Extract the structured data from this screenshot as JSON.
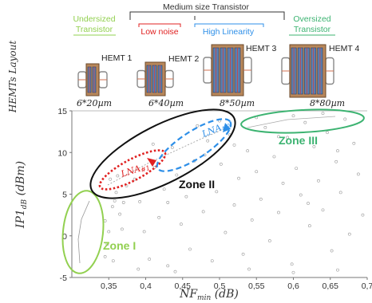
{
  "header": {
    "medium": "Medium size Transistor",
    "undersized": [
      "Undersized",
      "Transistor"
    ],
    "low_noise": "Low noise",
    "high_linearity": "High Linearity",
    "oversized": [
      "Oversized",
      "Transistor"
    ],
    "layout_label": "HEMTs Layout",
    "colors": {
      "medium": "#333333",
      "undersized": "#92d050",
      "low_noise": "#e02020",
      "high_linearity": "#2e8fe8",
      "oversized": "#3cb371"
    }
  },
  "transistors": [
    {
      "name": "HEMT 1",
      "size": "6*20µm",
      "fingers": 2
    },
    {
      "name": "HEMT 2",
      "size": "6*40µm",
      "fingers": 3
    },
    {
      "name": "HEMT 3",
      "size": "8*50µm",
      "fingers": 4
    },
    {
      "name": "HEMT 4",
      "size": "8*80µm",
      "fingers": 5
    }
  ],
  "zones": [
    {
      "name": "Zone I",
      "color": "#92d050"
    },
    {
      "name": "Zone II",
      "color": "#111111"
    },
    {
      "name": "Zone III",
      "color": "#3cb371"
    }
  ],
  "lna_labels": [
    {
      "name": "LNA",
      "sub": "#1",
      "color": "#e02020"
    },
    {
      "name": "LNA",
      "sub": "#2",
      "color": "#2e8fe8"
    }
  ],
  "chart_data": {
    "type": "scatter",
    "xlabel": "NF",
    "xlabel_sub": "min",
    "xlabel_unit": "(dB)",
    "ylabel": "IP1",
    "ylabel_sub": "dB",
    "ylabel_unit": "(dBm)",
    "xlim": [
      0.3,
      0.7
    ],
    "ylim": [
      -5,
      15
    ],
    "xticks": [
      0.35,
      0.4,
      0.45,
      0.5,
      0.55,
      0.6,
      0.65,
      0.7
    ],
    "xtick_labels": [
      "0,35",
      "0,4",
      "0,45",
      "0,5",
      "0,55",
      "0,6",
      "0,65",
      "0,7"
    ],
    "yticks": [
      -5,
      0,
      5,
      10,
      15
    ],
    "ytick_labels": [
      "-5",
      "0",
      "5",
      "10",
      "15"
    ],
    "grid": false,
    "series": [
      {
        "points": [
          [
            0.345,
            -2.5
          ],
          [
            0.35,
            0.5
          ],
          [
            0.355,
            3.5
          ],
          [
            0.36,
            5.2
          ],
          [
            0.345,
            1.8
          ],
          [
            0.352,
            6.8
          ],
          [
            0.358,
            4.2
          ],
          [
            0.365,
            2.6
          ],
          [
            0.348,
            -1.0
          ],
          [
            0.362,
            7.2
          ],
          [
            0.37,
            4.0
          ],
          [
            0.356,
            -3.0
          ],
          [
            0.368,
            0.8
          ],
          [
            0.374,
            6.0
          ],
          [
            0.385,
            6.8
          ],
          [
            0.392,
            4.1
          ],
          [
            0.398,
            0.5
          ],
          [
            0.405,
            -2.8
          ],
          [
            0.412,
            8.2
          ],
          [
            0.418,
            2.2
          ],
          [
            0.425,
            5.6
          ],
          [
            0.43,
            -3.6
          ],
          [
            0.436,
            10.6
          ],
          [
            0.442,
            7.3
          ],
          [
            0.448,
            1.4
          ],
          [
            0.455,
            4.7
          ],
          [
            0.46,
            -1.6
          ],
          [
            0.466,
            9.0
          ],
          [
            0.472,
            6.1
          ],
          [
            0.478,
            2.9
          ],
          [
            0.484,
            11.4
          ],
          [
            0.49,
            -3.0
          ],
          [
            0.496,
            5.3
          ],
          [
            0.502,
            8.6
          ],
          [
            0.508,
            0.4
          ],
          [
            0.514,
            12.1
          ],
          [
            0.52,
            3.7
          ],
          [
            0.526,
            6.9
          ],
          [
            0.532,
            -2.2
          ],
          [
            0.538,
            10.2
          ],
          [
            0.544,
            1.9
          ],
          [
            0.55,
            7.7
          ],
          [
            0.556,
            4.4
          ],
          [
            0.562,
            13.0
          ],
          [
            0.568,
            -0.6
          ],
          [
            0.574,
            9.5
          ],
          [
            0.58,
            2.8
          ],
          [
            0.586,
            6.3
          ],
          [
            0.592,
            11.8
          ],
          [
            0.598,
            -3.4
          ],
          [
            0.604,
            8.1
          ],
          [
            0.61,
            4.9
          ],
          [
            0.616,
            13.6
          ],
          [
            0.622,
            1.2
          ],
          [
            0.628,
            10.7
          ],
          [
            0.634,
            6.6
          ],
          [
            0.64,
            3.1
          ],
          [
            0.646,
            12.4
          ],
          [
            0.652,
            -1.8
          ],
          [
            0.658,
            8.9
          ],
          [
            0.664,
            5.2
          ],
          [
            0.67,
            14.0
          ],
          [
            0.676,
            0.2
          ],
          [
            0.682,
            11.1
          ],
          [
            0.688,
            7.4
          ],
          [
            0.694,
            2.5
          ],
          [
            0.47,
            13.2
          ],
          [
            0.41,
            11.0
          ],
          [
            0.6,
            14.4
          ],
          [
            0.64,
            14.7
          ],
          [
            0.55,
            14.2
          ],
          [
            0.5,
            13.8
          ],
          [
            0.43,
            4.0
          ],
          [
            0.46,
            6.0
          ],
          [
            0.48,
            9.7
          ],
          [
            0.52,
            10.9
          ],
          [
            0.58,
            11.9
          ],
          [
            0.62,
            3.9
          ],
          [
            0.66,
            10.2
          ],
          [
            0.44,
            -4.3
          ],
          [
            0.54,
            -4.0
          ],
          [
            0.6,
            -4.4
          ],
          [
            0.66,
            -4.1
          ],
          [
            0.39,
            -4.0
          ]
        ]
      }
    ]
  }
}
